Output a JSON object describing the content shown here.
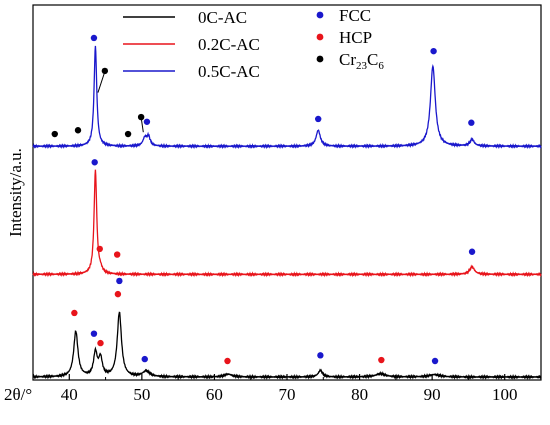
{
  "chart_data": {
    "type": "line",
    "xlabel": "2θ/°",
    "ylabel": "Intensity/a.u.",
    "xlim": [
      35,
      105
    ],
    "x_ticks": [
      40,
      50,
      60,
      70,
      80,
      90,
      100
    ],
    "x_tick_labels": [
      "40",
      "50",
      "60",
      "70",
      "80",
      "90",
      "100"
    ],
    "series": [
      {
        "name": "0C-AC",
        "color": "#000000",
        "baseline": 0,
        "peaks": [
          {
            "x": 40.9,
            "h": 0.48,
            "w": 0.35
          },
          {
            "x": 43.6,
            "h": 0.25,
            "w": 0.3
          },
          {
            "x": 44.3,
            "h": 0.19,
            "w": 0.3
          },
          {
            "x": 46.9,
            "h": 0.68,
            "w": 0.35
          },
          {
            "x": 50.6,
            "h": 0.06,
            "w": 0.6
          },
          {
            "x": 61.9,
            "h": 0.03,
            "w": 0.6
          },
          {
            "x": 74.6,
            "h": 0.07,
            "w": 0.35
          },
          {
            "x": 82.9,
            "h": 0.035,
            "w": 0.8
          },
          {
            "x": 90.3,
            "h": 0.025,
            "w": 0.9
          }
        ],
        "markers": [
          {
            "x": 40.7,
            "y": 0.68,
            "phase": "HCP"
          },
          {
            "x": 43.4,
            "y": 0.46,
            "phase": "FCC"
          },
          {
            "x": 44.3,
            "y": 0.36,
            "phase": "HCP"
          },
          {
            "x": 46.7,
            "y": 0.88,
            "phase": "HCP"
          },
          {
            "x": 46.9,
            "y": 1.02,
            "phase": "FCC"
          },
          {
            "x": 50.4,
            "y": 0.19,
            "phase": "FCC"
          },
          {
            "x": 61.8,
            "y": 0.17,
            "phase": "HCP"
          },
          {
            "x": 74.6,
            "y": 0.23,
            "phase": "FCC"
          },
          {
            "x": 83.0,
            "y": 0.18,
            "phase": "HCP"
          },
          {
            "x": 90.4,
            "y": 0.17,
            "phase": "FCC"
          }
        ]
      },
      {
        "name": "0.2C-AC",
        "color": "#e8141b",
        "baseline": 1.09,
        "peaks": [
          {
            "x": 43.6,
            "h": 1.1,
            "w": 0.22
          },
          {
            "x": 44.3,
            "h": 0.04,
            "w": 0.3
          },
          {
            "x": 95.5,
            "h": 0.08,
            "w": 0.4
          }
        ],
        "markers": [
          {
            "x": 43.5,
            "y": 2.28,
            "phase": "FCC"
          },
          {
            "x": 44.2,
            "y": 1.36,
            "phase": "HCP"
          },
          {
            "x": 46.6,
            "y": 1.3,
            "phase": "HCP"
          },
          {
            "x": 95.5,
            "y": 1.33,
            "phase": "FCC"
          }
        ]
      },
      {
        "name": "0.5C-AC",
        "color": "#1a18cc",
        "baseline": 2.45,
        "peaks": [
          {
            "x": 43.6,
            "h": 1.06,
            "w": 0.22
          },
          {
            "x": 50.4,
            "h": 0.08,
            "w": 0.3
          },
          {
            "x": 50.9,
            "h": 0.1,
            "w": 0.3
          },
          {
            "x": 74.3,
            "h": 0.17,
            "w": 0.35
          },
          {
            "x": 90.1,
            "h": 0.85,
            "w": 0.4
          },
          {
            "x": 95.5,
            "h": 0.07,
            "w": 0.35
          }
        ],
        "markers": [
          {
            "x": 43.4,
            "y": 3.6,
            "phase": "FCC"
          },
          {
            "x": 44.9,
            "y": 3.25,
            "phase": "Cr23C6"
          },
          {
            "x": 38.0,
            "y": 2.58,
            "phase": "Cr23C6"
          },
          {
            "x": 41.2,
            "y": 2.62,
            "phase": "Cr23C6"
          },
          {
            "x": 48.1,
            "y": 2.58,
            "phase": "Cr23C6"
          },
          {
            "x": 49.9,
            "y": 2.76,
            "phase": "Cr23C6"
          },
          {
            "x": 50.7,
            "y": 2.71,
            "phase": "FCC"
          },
          {
            "x": 74.3,
            "y": 2.74,
            "phase": "FCC"
          },
          {
            "x": 90.2,
            "y": 3.46,
            "phase": "FCC"
          },
          {
            "x": 95.4,
            "y": 2.7,
            "phase": "FCC"
          }
        ]
      }
    ],
    "legend": {
      "placement": "top",
      "lines": [
        {
          "label": "0C-AC",
          "color": "#000000"
        },
        {
          "label": "0.2C-AC",
          "color": "#e8141b"
        },
        {
          "label": "0.5C-AC",
          "color": "#1a18cc"
        }
      ],
      "phases": [
        {
          "key": "FCC",
          "label": "FCC",
          "color": "#1a18cc"
        },
        {
          "key": "HCP",
          "label": "HCP",
          "color": "#e8141b"
        },
        {
          "key": "Cr23C6",
          "label_main": "Cr",
          "label_sub1": "23",
          "label_mid": "C",
          "label_sub2": "6",
          "color": "#000000"
        }
      ]
    }
  }
}
